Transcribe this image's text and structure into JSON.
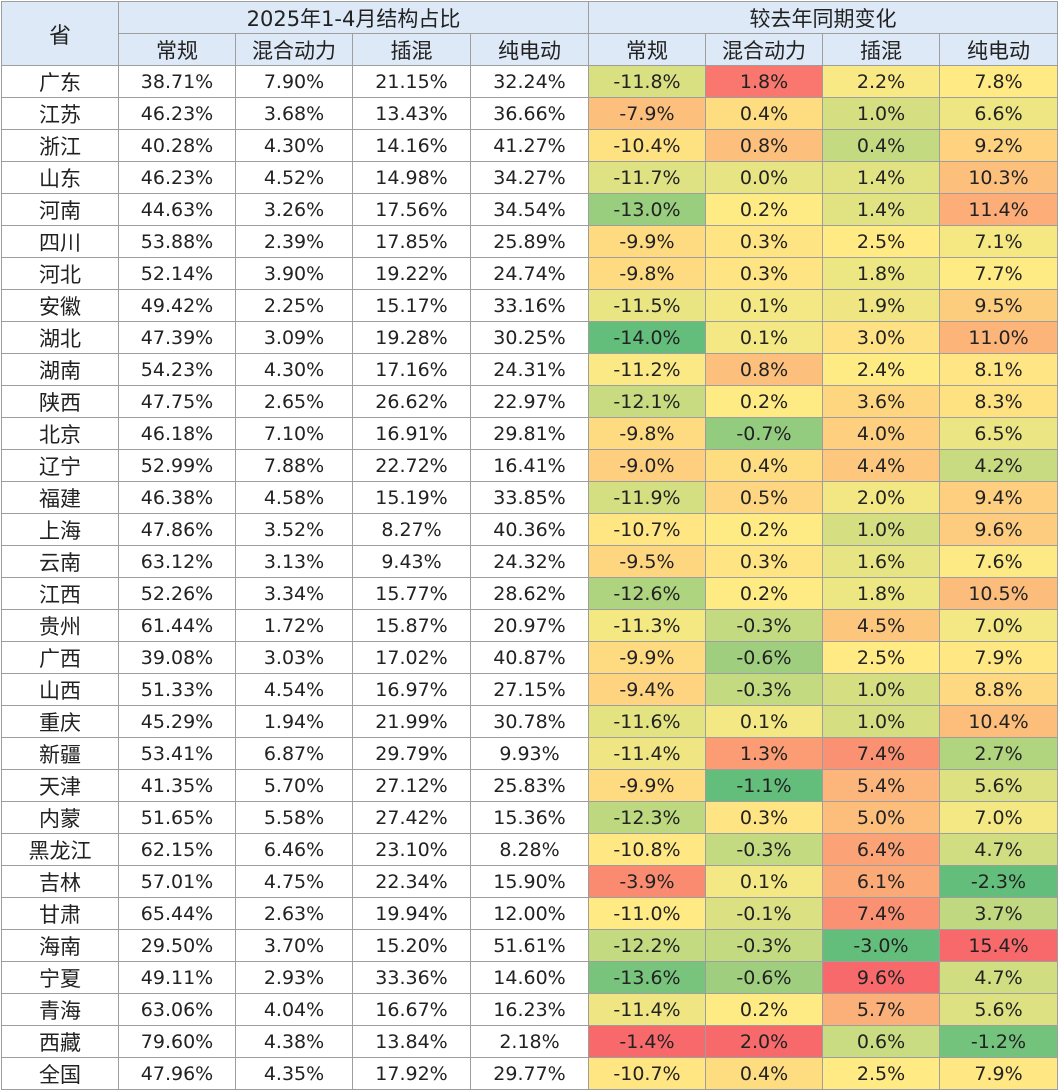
{
  "headers": {
    "province": "省",
    "group1": "2025年1-4月结构占比",
    "group2": "较去年同期变化",
    "cols": [
      "常规",
      "混合动力",
      "插混",
      "纯电动"
    ]
  },
  "colors": {
    "header_bg": "#dde9f7",
    "scale_low": "#63be7b",
    "scale_mid": "#ffeb84",
    "scale_high": "#f8696b"
  },
  "rows": [
    {
      "prov": "广东",
      "share": [
        "38.71%",
        "7.90%",
        "21.15%",
        "32.24%"
      ],
      "change": [
        "-11.8%",
        "1.8%",
        "2.2%",
        "7.8%"
      ]
    },
    {
      "prov": "江苏",
      "share": [
        "46.23%",
        "3.68%",
        "13.43%",
        "36.66%"
      ],
      "change": [
        "-7.9%",
        "0.4%",
        "1.0%",
        "6.6%"
      ]
    },
    {
      "prov": "浙江",
      "share": [
        "40.28%",
        "4.30%",
        "14.16%",
        "41.27%"
      ],
      "change": [
        "-10.4%",
        "0.8%",
        "0.4%",
        "9.2%"
      ]
    },
    {
      "prov": "山东",
      "share": [
        "46.23%",
        "4.52%",
        "14.98%",
        "34.27%"
      ],
      "change": [
        "-11.7%",
        "0.0%",
        "1.4%",
        "10.3%"
      ]
    },
    {
      "prov": "河南",
      "share": [
        "44.63%",
        "3.26%",
        "17.56%",
        "34.54%"
      ],
      "change": [
        "-13.0%",
        "0.2%",
        "1.4%",
        "11.4%"
      ]
    },
    {
      "prov": "四川",
      "share": [
        "53.88%",
        "2.39%",
        "17.85%",
        "25.89%"
      ],
      "change": [
        "-9.9%",
        "0.3%",
        "2.5%",
        "7.1%"
      ]
    },
    {
      "prov": "河北",
      "share": [
        "52.14%",
        "3.90%",
        "19.22%",
        "24.74%"
      ],
      "change": [
        "-9.8%",
        "0.3%",
        "1.8%",
        "7.7%"
      ]
    },
    {
      "prov": "安徽",
      "share": [
        "49.42%",
        "2.25%",
        "15.17%",
        "33.16%"
      ],
      "change": [
        "-11.5%",
        "0.1%",
        "1.9%",
        "9.5%"
      ]
    },
    {
      "prov": "湖北",
      "share": [
        "47.39%",
        "3.09%",
        "19.28%",
        "30.25%"
      ],
      "change": [
        "-14.0%",
        "0.1%",
        "3.0%",
        "11.0%"
      ]
    },
    {
      "prov": "湖南",
      "share": [
        "54.23%",
        "4.30%",
        "17.16%",
        "24.31%"
      ],
      "change": [
        "-11.2%",
        "0.8%",
        "2.4%",
        "8.1%"
      ]
    },
    {
      "prov": "陕西",
      "share": [
        "47.75%",
        "2.65%",
        "26.62%",
        "22.97%"
      ],
      "change": [
        "-12.1%",
        "0.2%",
        "3.6%",
        "8.3%"
      ]
    },
    {
      "prov": "北京",
      "share": [
        "46.18%",
        "7.10%",
        "16.91%",
        "29.81%"
      ],
      "change": [
        "-9.8%",
        "-0.7%",
        "4.0%",
        "6.5%"
      ]
    },
    {
      "prov": "辽宁",
      "share": [
        "52.99%",
        "7.88%",
        "22.72%",
        "16.41%"
      ],
      "change": [
        "-9.0%",
        "0.4%",
        "4.4%",
        "4.2%"
      ]
    },
    {
      "prov": "福建",
      "share": [
        "46.38%",
        "4.58%",
        "15.19%",
        "33.85%"
      ],
      "change": [
        "-11.9%",
        "0.5%",
        "2.0%",
        "9.4%"
      ]
    },
    {
      "prov": "上海",
      "share": [
        "47.86%",
        "3.52%",
        "8.27%",
        "40.36%"
      ],
      "change": [
        "-10.7%",
        "0.2%",
        "1.0%",
        "9.6%"
      ]
    },
    {
      "prov": "云南",
      "share": [
        "63.12%",
        "3.13%",
        "9.43%",
        "24.32%"
      ],
      "change": [
        "-9.5%",
        "0.3%",
        "1.6%",
        "7.6%"
      ]
    },
    {
      "prov": "江西",
      "share": [
        "52.26%",
        "3.34%",
        "15.77%",
        "28.62%"
      ],
      "change": [
        "-12.6%",
        "0.2%",
        "1.8%",
        "10.5%"
      ]
    },
    {
      "prov": "贵州",
      "share": [
        "61.44%",
        "1.72%",
        "15.87%",
        "20.97%"
      ],
      "change": [
        "-11.3%",
        "-0.3%",
        "4.5%",
        "7.0%"
      ]
    },
    {
      "prov": "广西",
      "share": [
        "39.08%",
        "3.03%",
        "17.02%",
        "40.87%"
      ],
      "change": [
        "-9.9%",
        "-0.6%",
        "2.5%",
        "7.9%"
      ]
    },
    {
      "prov": "山西",
      "share": [
        "51.33%",
        "4.54%",
        "16.97%",
        "27.15%"
      ],
      "change": [
        "-9.4%",
        "-0.3%",
        "1.0%",
        "8.8%"
      ]
    },
    {
      "prov": "重庆",
      "share": [
        "45.29%",
        "1.94%",
        "21.99%",
        "30.78%"
      ],
      "change": [
        "-11.6%",
        "0.1%",
        "1.0%",
        "10.4%"
      ]
    },
    {
      "prov": "新疆",
      "share": [
        "53.41%",
        "6.87%",
        "29.79%",
        "9.93%"
      ],
      "change": [
        "-11.4%",
        "1.3%",
        "7.4%",
        "2.7%"
      ]
    },
    {
      "prov": "天津",
      "share": [
        "41.35%",
        "5.70%",
        "27.12%",
        "25.83%"
      ],
      "change": [
        "-9.9%",
        "-1.1%",
        "5.4%",
        "5.6%"
      ]
    },
    {
      "prov": "内蒙",
      "share": [
        "51.65%",
        "5.58%",
        "27.42%",
        "15.36%"
      ],
      "change": [
        "-12.3%",
        "0.3%",
        "5.0%",
        "7.0%"
      ]
    },
    {
      "prov": "黑龙江",
      "share": [
        "62.15%",
        "6.46%",
        "23.10%",
        "8.28%"
      ],
      "change": [
        "-10.8%",
        "-0.3%",
        "6.4%",
        "4.7%"
      ]
    },
    {
      "prov": "吉林",
      "share": [
        "57.01%",
        "4.75%",
        "22.34%",
        "15.90%"
      ],
      "change": [
        "-3.9%",
        "0.1%",
        "6.1%",
        "-2.3%"
      ]
    },
    {
      "prov": "甘肃",
      "share": [
        "65.44%",
        "2.63%",
        "19.94%",
        "12.00%"
      ],
      "change": [
        "-11.0%",
        "-0.1%",
        "7.4%",
        "3.7%"
      ]
    },
    {
      "prov": "海南",
      "share": [
        "29.50%",
        "3.70%",
        "15.20%",
        "51.61%"
      ],
      "change": [
        "-12.2%",
        "-0.3%",
        "-3.0%",
        "15.4%"
      ]
    },
    {
      "prov": "宁夏",
      "share": [
        "49.11%",
        "2.93%",
        "33.36%",
        "14.60%"
      ],
      "change": [
        "-13.6%",
        "-0.6%",
        "9.6%",
        "4.7%"
      ]
    },
    {
      "prov": "青海",
      "share": [
        "63.06%",
        "4.04%",
        "16.67%",
        "16.23%"
      ],
      "change": [
        "-11.4%",
        "0.2%",
        "5.7%",
        "5.6%"
      ]
    },
    {
      "prov": "西藏",
      "share": [
        "79.60%",
        "4.38%",
        "13.84%",
        "2.18%"
      ],
      "change": [
        "-1.4%",
        "2.0%",
        "0.6%",
        "-1.2%"
      ]
    },
    {
      "prov": "全国",
      "share": [
        "47.96%",
        "4.35%",
        "17.92%",
        "29.77%"
      ],
      "change": [
        "-10.7%",
        "0.4%",
        "2.5%",
        "7.9%"
      ]
    }
  ]
}
